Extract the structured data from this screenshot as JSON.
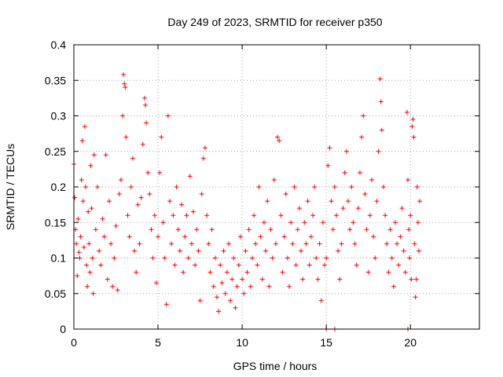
{
  "chart_data": {
    "type": "scatter",
    "title": "Day 249 of 2023, SRMTID for receiver p350",
    "xlabel": "GPS time / hours",
    "ylabel": "SRMTID / TECUs",
    "xlim": [
      0,
      24.1
    ],
    "ylim": [
      0,
      0.4
    ],
    "xticks": [
      0,
      5,
      10,
      15,
      20
    ],
    "xtick_labels": [
      "0",
      "5",
      "10",
      "15",
      "20"
    ],
    "yticks": [
      0,
      0.05,
      0.1,
      0.15,
      0.2,
      0.25,
      0.3,
      0.35,
      0.4
    ],
    "ytick_labels": [
      "0",
      "0.05",
      "0.1",
      "0.15",
      "0.2",
      "0.25",
      "0.3",
      "0.35",
      "0.4"
    ],
    "grid": true,
    "marker": "+",
    "color": "#ff0000",
    "series": [
      {
        "name": "SRMTID",
        "points": [
          [
            0.0,
            0.232
          ],
          [
            0.05,
            0.185
          ],
          [
            0.1,
            0.14
          ],
          [
            0.15,
            0.12
          ],
          [
            0.2,
            0.075
          ],
          [
            0.25,
            0.155
          ],
          [
            0.3,
            0.108
          ],
          [
            0.35,
            0.1
          ],
          [
            0.4,
            0.13
          ],
          [
            0.45,
            0.21
          ],
          [
            0.5,
            0.265
          ],
          [
            0.55,
            0.18
          ],
          [
            0.6,
            0.115
          ],
          [
            0.65,
            0.285
          ],
          [
            0.7,
            0.2
          ],
          [
            0.75,
            0.09
          ],
          [
            0.8,
            0.06
          ],
          [
            0.85,
            0.165
          ],
          [
            0.9,
            0.12
          ],
          [
            0.95,
            0.08
          ],
          [
            1.0,
            0.23
          ],
          [
            1.05,
            0.17
          ],
          [
            1.1,
            0.1
          ],
          [
            1.15,
            0.05
          ],
          [
            1.2,
            0.245
          ],
          [
            1.3,
            0.14
          ],
          [
            1.4,
            0.2
          ],
          [
            1.5,
            0.11
          ],
          [
            1.6,
            0.09
          ],
          [
            1.7,
            0.155
          ],
          [
            1.8,
            0.13
          ],
          [
            1.9,
            0.245
          ],
          [
            2.0,
            0.07
          ],
          [
            2.1,
            0.18
          ],
          [
            2.2,
            0.12
          ],
          [
            2.3,
            0.06
          ],
          [
            2.4,
            0.1
          ],
          [
            2.5,
            0.145
          ],
          [
            2.6,
            0.055
          ],
          [
            2.7,
            0.19
          ],
          [
            2.8,
            0.21
          ],
          [
            2.9,
            0.3
          ],
          [
            2.95,
            0.358
          ],
          [
            3.0,
            0.345
          ],
          [
            3.05,
            0.34
          ],
          [
            3.1,
            0.27
          ],
          [
            3.2,
            0.16
          ],
          [
            3.3,
            0.13
          ],
          [
            3.4,
            0.2
          ],
          [
            3.5,
            0.24
          ],
          [
            3.6,
            0.11
          ],
          [
            3.7,
            0.08
          ],
          [
            3.8,
            0.175
          ],
          [
            3.9,
            0.12
          ],
          [
            4.0,
            0.185
          ],
          [
            4.1,
            0.26
          ],
          [
            4.2,
            0.325
          ],
          [
            4.25,
            0.315
          ],
          [
            4.3,
            0.29
          ],
          [
            4.4,
            0.22
          ],
          [
            4.5,
            0.19
          ],
          [
            4.6,
            0.14
          ],
          [
            4.7,
            0.1
          ],
          [
            4.8,
            0.16
          ],
          [
            4.9,
            0.065
          ],
          [
            5.0,
            0.13
          ],
          [
            5.1,
            0.22
          ],
          [
            5.2,
            0.27
          ],
          [
            5.3,
            0.15
          ],
          [
            5.4,
            0.1
          ],
          [
            5.5,
            0.035
          ],
          [
            5.6,
            0.3
          ],
          [
            5.7,
            0.18
          ],
          [
            5.8,
            0.12
          ],
          [
            5.9,
            0.16
          ],
          [
            6.0,
            0.09
          ],
          [
            6.1,
            0.2
          ],
          [
            6.2,
            0.14
          ],
          [
            6.3,
            0.11
          ],
          [
            6.4,
            0.175
          ],
          [
            6.5,
            0.08
          ],
          [
            6.6,
            0.13
          ],
          [
            6.7,
            0.16
          ],
          [
            6.8,
            0.1
          ],
          [
            6.9,
            0.215
          ],
          [
            7.0,
            0.12
          ],
          [
            7.1,
            0.165
          ],
          [
            7.2,
            0.09
          ],
          [
            7.3,
            0.14
          ],
          [
            7.4,
            0.11
          ],
          [
            7.5,
            0.04
          ],
          [
            7.6,
            0.19
          ],
          [
            7.7,
            0.24
          ],
          [
            7.8,
            0.255
          ],
          [
            7.9,
            0.16
          ],
          [
            8.0,
            0.12
          ],
          [
            8.1,
            0.08
          ],
          [
            8.2,
            0.14
          ],
          [
            8.3,
            0.06
          ],
          [
            8.4,
            0.1
          ],
          [
            8.5,
            0.045
          ],
          [
            8.6,
            0.025
          ],
          [
            8.7,
            0.09
          ],
          [
            8.8,
            0.065
          ],
          [
            8.9,
            0.11
          ],
          [
            9.0,
            0.05
          ],
          [
            9.1,
            0.08
          ],
          [
            9.2,
            0.12
          ],
          [
            9.3,
            0.04
          ],
          [
            9.4,
            0.07
          ],
          [
            9.5,
            0.1
          ],
          [
            9.6,
            0.03
          ],
          [
            9.7,
            0.06
          ],
          [
            9.8,
            0.09
          ],
          [
            9.9,
            0.13
          ],
          [
            10.0,
            0.07
          ],
          [
            10.1,
            0.05
          ],
          [
            10.2,
            0.11
          ],
          [
            10.3,
            0.08
          ],
          [
            10.4,
            0.14
          ],
          [
            10.5,
            0.06
          ],
          [
            10.6,
            0.1
          ],
          [
            10.7,
            0.16
          ],
          [
            10.8,
            0.12
          ],
          [
            10.9,
            0.09
          ],
          [
            11.0,
            0.2
          ],
          [
            11.1,
            0.13
          ],
          [
            11.2,
            0.07
          ],
          [
            11.3,
            0.15
          ],
          [
            11.4,
            0.11
          ],
          [
            11.5,
            0.18
          ],
          [
            11.6,
            0.06
          ],
          [
            11.7,
            0.14
          ],
          [
            11.8,
            0.1
          ],
          [
            11.9,
            0.21
          ],
          [
            12.0,
            0.12
          ],
          [
            12.1,
            0.27
          ],
          [
            12.2,
            0.265
          ],
          [
            12.3,
            0.16
          ],
          [
            12.4,
            0.08
          ],
          [
            12.5,
            0.13
          ],
          [
            12.6,
            0.19
          ],
          [
            12.7,
            0.1
          ],
          [
            12.8,
            0.06
          ],
          [
            12.9,
            0.15
          ],
          [
            13.0,
            0.12
          ],
          [
            13.1,
            0.2
          ],
          [
            13.2,
            0.09
          ],
          [
            13.3,
            0.14
          ],
          [
            13.4,
            0.17
          ],
          [
            13.5,
            0.11
          ],
          [
            13.6,
            0.07
          ],
          [
            13.7,
            0.15
          ],
          [
            13.8,
            0.12
          ],
          [
            13.9,
            0.18
          ],
          [
            14.0,
            0.09
          ],
          [
            14.1,
            0.13
          ],
          [
            14.2,
            0.16
          ],
          [
            14.3,
            0.2
          ],
          [
            14.4,
            0.1
          ],
          [
            14.5,
            0.07
          ],
          [
            14.6,
            0.12
          ],
          [
            14.7,
            0.04
          ],
          [
            14.8,
            0.15
          ],
          [
            14.9,
            0.09
          ],
          [
            15.0,
            0.1
          ],
          [
            15.1,
            0.23
          ],
          [
            15.2,
            0.255
          ],
          [
            15.3,
            0.18
          ],
          [
            15.4,
            0.14
          ],
          [
            15.5,
            0.2
          ],
          [
            15.6,
            0.16
          ],
          [
            15.7,
            0.11
          ],
          [
            15.8,
            0.07
          ],
          [
            15.9,
            0.12
          ],
          [
            16.0,
            0.17
          ],
          [
            16.1,
            0.22
          ],
          [
            16.2,
            0.25
          ],
          [
            16.3,
            0.18
          ],
          [
            16.4,
            0.14
          ],
          [
            16.5,
            0.2
          ],
          [
            16.6,
            0.15
          ],
          [
            16.7,
            0.12
          ],
          [
            16.8,
            0.09
          ],
          [
            16.9,
            0.17
          ],
          [
            17.0,
            0.22
          ],
          [
            17.1,
            0.27
          ],
          [
            17.2,
            0.3
          ],
          [
            17.3,
            0.19
          ],
          [
            17.4,
            0.14
          ],
          [
            17.5,
            0.08
          ],
          [
            17.6,
            0.16
          ],
          [
            17.7,
            0.21
          ],
          [
            17.8,
            0.13
          ],
          [
            17.9,
            0.1
          ],
          [
            18.0,
            0.18
          ],
          [
            18.1,
            0.25
          ],
          [
            18.2,
            0.352
          ],
          [
            18.25,
            0.32
          ],
          [
            18.3,
            0.28
          ],
          [
            18.4,
            0.2
          ],
          [
            18.5,
            0.16
          ],
          [
            18.6,
            0.12
          ],
          [
            18.7,
            0.08
          ],
          [
            18.8,
            0.14
          ],
          [
            18.9,
            0.1
          ],
          [
            19.0,
            0.06
          ],
          [
            19.1,
            0.15
          ],
          [
            19.2,
            0.12
          ],
          [
            19.3,
            0.09
          ],
          [
            19.4,
            0.13
          ],
          [
            19.5,
            0.17
          ],
          [
            19.6,
            0.11
          ],
          [
            19.7,
            0.08
          ],
          [
            19.8,
            0.305
          ],
          [
            19.85,
            0.21
          ],
          [
            19.9,
            0.14
          ],
          [
            19.95,
            0.1
          ],
          [
            20.0,
            0.16
          ],
          [
            20.05,
            0.07
          ],
          [
            20.1,
            0.285
          ],
          [
            20.15,
            0.295
          ],
          [
            20.2,
            0.27
          ],
          [
            20.25,
            0.12
          ],
          [
            20.3,
            0.045
          ],
          [
            20.35,
            0.07
          ],
          [
            20.4,
            0.2
          ],
          [
            20.45,
            0.15
          ],
          [
            20.5,
            0.11
          ],
          [
            20.55,
            0.18
          ],
          [
            15.0,
            0.0
          ],
          [
            15.5,
            0.0
          ],
          [
            19.85,
            0.0
          ]
        ]
      }
    ]
  }
}
